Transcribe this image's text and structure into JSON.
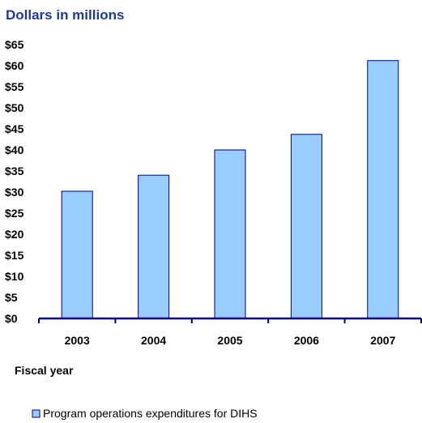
{
  "chart_data": {
    "type": "bar",
    "title": "Dollars in millions",
    "xlabel": "Fiscal year",
    "ylabel": "",
    "categories": [
      "2003",
      "2004",
      "2005",
      "2006",
      "2007"
    ],
    "series": [
      {
        "name": "Program operations expenditures for DIHS",
        "values": [
          30.2,
          34.0,
          40.0,
          43.7,
          61.2
        ]
      }
    ],
    "ylim": [
      0,
      65
    ],
    "yticks": [
      "$0",
      "$5",
      "$10",
      "$15",
      "$20",
      "$25",
      "$30",
      "$35",
      "$40",
      "$45",
      "$50",
      "$55",
      "$60",
      "$65"
    ],
    "grid": false,
    "legend": "bottom",
    "colors": {
      "bar_fill": "#99ccff",
      "bar_stroke": "#000080",
      "axis": "#000080",
      "title": "#1f3a93"
    }
  }
}
